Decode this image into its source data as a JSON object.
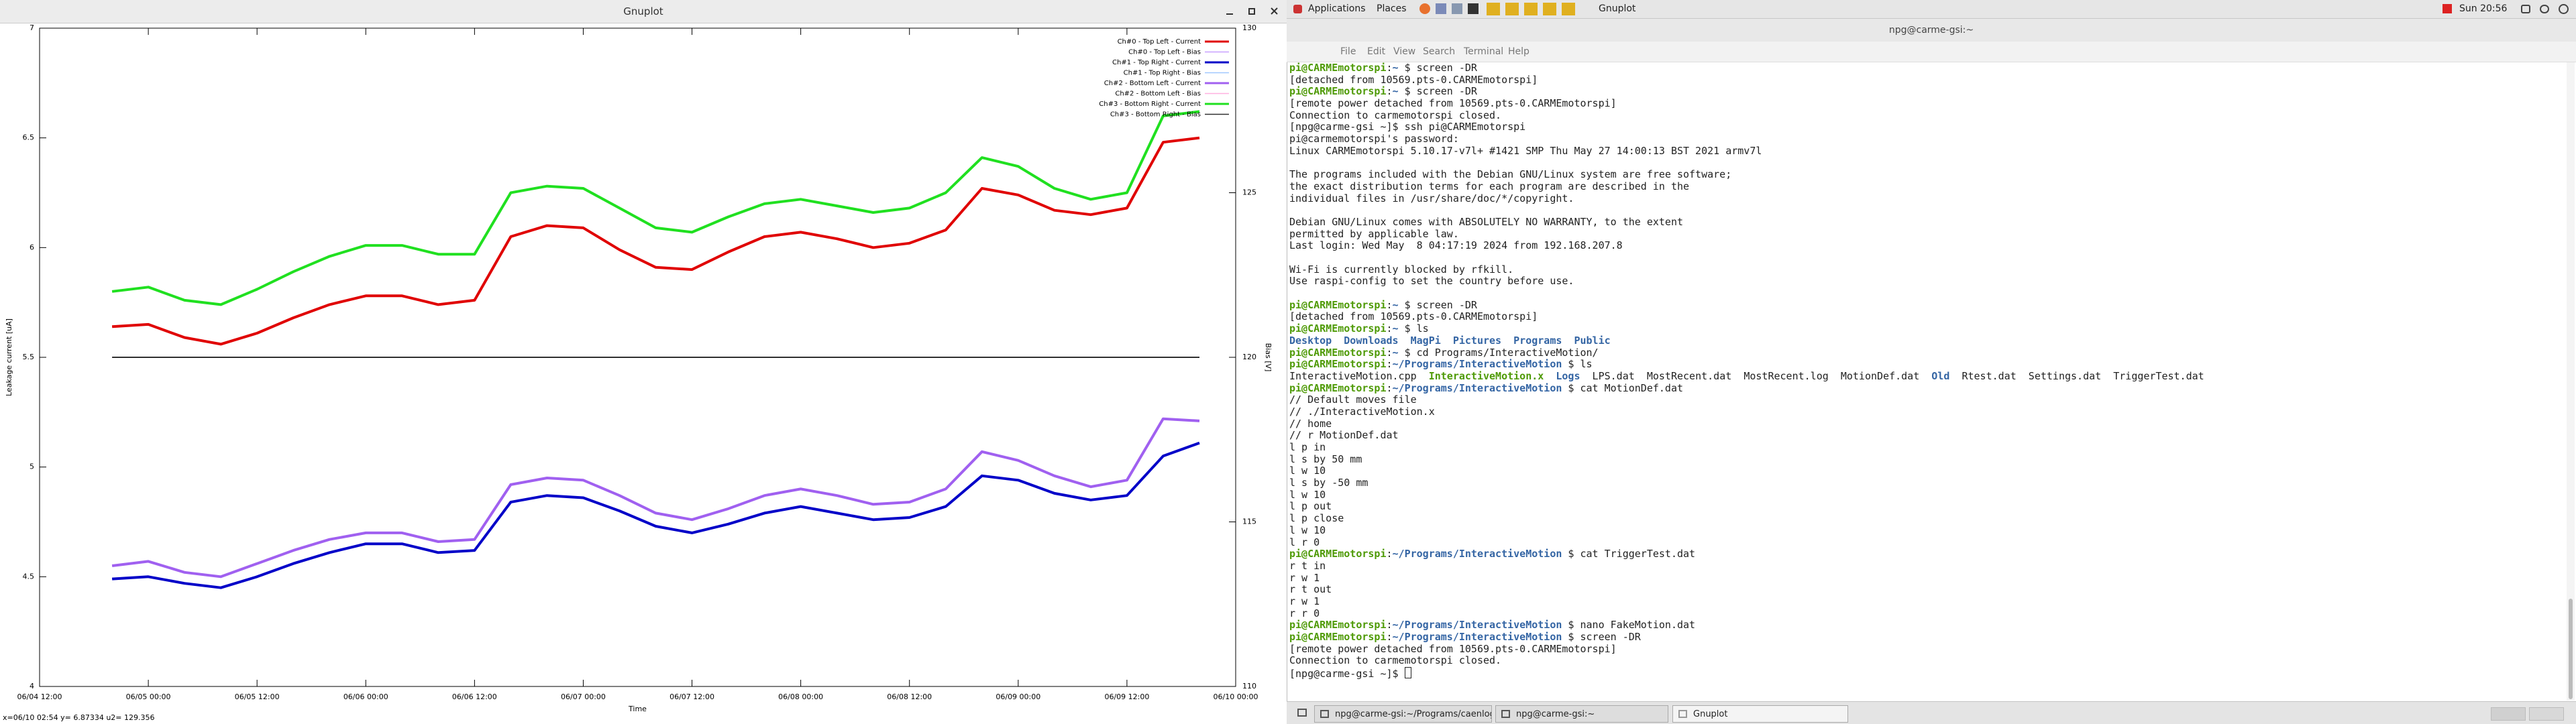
{
  "gnuplot_window": {
    "title": "Gnuplot",
    "status": "x=06/10 02:54 y= 6.87334 u2= 129.356"
  },
  "chart_data": {
    "type": "line",
    "xlabel": "Time",
    "ylabel": "Leakage current [uA]",
    "y2label": "Bias [V]",
    "x": [
      "06/04 20:00",
      "06/05 00:00",
      "06/05 04:00",
      "06/05 08:00",
      "06/05 12:00",
      "06/05 16:00",
      "06/05 20:00",
      "06/06 00:00",
      "06/06 04:00",
      "06/06 08:00",
      "06/06 12:00",
      "06/06 16:00",
      "06/06 20:00",
      "06/07 00:00",
      "06/07 04:00",
      "06/07 08:00",
      "06/07 12:00",
      "06/07 16:00",
      "06/07 20:00",
      "06/08 00:00",
      "06/08 04:00",
      "06/08 08:00",
      "06/08 12:00",
      "06/08 16:00",
      "06/08 20:00",
      "06/09 00:00",
      "06/09 04:00",
      "06/09 08:00",
      "06/09 12:00",
      "06/09 16:00",
      "06/09 20:00"
    ],
    "xlim": [
      "06/04 12:00",
      "06/10 00:00"
    ],
    "xticks": [
      "06/04 12:00",
      "06/05 00:00",
      "06/05 12:00",
      "06/06 00:00",
      "06/06 12:00",
      "06/07 00:00",
      "06/07 12:00",
      "06/08 00:00",
      "06/08 12:00",
      "06/09 00:00",
      "06/09 12:00",
      "06/10 00:00"
    ],
    "ylim": [
      4,
      7
    ],
    "yticks": [
      4,
      4.5,
      5,
      5.5,
      6,
      6.5,
      7
    ],
    "y2lim": [
      110,
      130
    ],
    "y2ticks": [
      110,
      115,
      120,
      125,
      130
    ],
    "legend": "top right",
    "series": [
      {
        "name": "Ch#0 - Top Left - Current",
        "color": "#e00000",
        "values": [
          5.64,
          5.65,
          5.59,
          5.56,
          5.61,
          5.68,
          5.74,
          5.78,
          5.78,
          5.74,
          5.76,
          6.05,
          6.1,
          6.09,
          5.99,
          5.91,
          5.9,
          5.98,
          6.05,
          6.07,
          6.04,
          6.0,
          6.02,
          6.08,
          6.27,
          6.24,
          6.17,
          6.15,
          6.18,
          6.48,
          6.5
        ]
      },
      {
        "name": "Ch#0 - Top Left - Bias",
        "color": "#c8a0ff",
        "axis": "y2",
        "x": [
          "06/04 20:00",
          "06/09 20:00"
        ],
        "values": [
          120,
          120
        ]
      },
      {
        "name": "Ch#1 - Top Right - Current",
        "color": "#0000c8",
        "values": [
          4.49,
          4.5,
          4.47,
          4.45,
          4.5,
          4.56,
          4.61,
          4.65,
          4.65,
          4.61,
          4.62,
          4.84,
          4.87,
          4.86,
          4.8,
          4.73,
          4.7,
          4.74,
          4.79,
          4.82,
          4.79,
          4.76,
          4.77,
          4.82,
          4.96,
          4.94,
          4.88,
          4.85,
          4.87,
          5.05,
          5.11
        ]
      },
      {
        "name": "Ch#1 - Top Right - Bias",
        "color": "#a0c8ff",
        "axis": "y2",
        "x": [
          "06/04 20:00",
          "06/09 20:00"
        ],
        "values": [
          120,
          120
        ]
      },
      {
        "name": "Ch#2 - Bottom Left - Current",
        "color": "#a060f0",
        "values": [
          4.55,
          4.57,
          4.52,
          4.5,
          4.56,
          4.62,
          4.67,
          4.7,
          4.7,
          4.66,
          4.67,
          4.92,
          4.95,
          4.94,
          4.87,
          4.79,
          4.76,
          4.81,
          4.87,
          4.9,
          4.87,
          4.83,
          4.84,
          4.9,
          5.07,
          5.03,
          4.96,
          4.91,
          4.94,
          5.22,
          5.21
        ]
      },
      {
        "name": "Ch#2 - Bottom Left - Bias",
        "color": "#ffb0e0",
        "axis": "y2",
        "x": [
          "06/04 20:00",
          "06/09 20:00"
        ],
        "values": [
          120,
          120
        ]
      },
      {
        "name": "Ch#3 - Bottom Right - Current",
        "color": "#20e020",
        "values": [
          5.8,
          5.82,
          5.76,
          5.74,
          5.81,
          5.89,
          5.96,
          6.01,
          6.01,
          5.97,
          5.97,
          6.25,
          6.28,
          6.27,
          6.18,
          6.09,
          6.07,
          6.14,
          6.2,
          6.22,
          6.19,
          6.16,
          6.18,
          6.25,
          6.41,
          6.37,
          6.27,
          6.22,
          6.25,
          6.6,
          6.62
        ]
      },
      {
        "name": "Ch#3 - Bottom Right - Bias",
        "color": "#303030",
        "axis": "y2",
        "x": [
          "06/04 20:00",
          "06/09 20:00"
        ],
        "values": [
          120,
          120
        ]
      }
    ]
  },
  "topbar": {
    "applications": "Applications",
    "places": "Places",
    "window": "Gnuplot",
    "clock": "Sun 20:56"
  },
  "terminal": {
    "title": "npg@carme-gsi:~",
    "menu": [
      "File",
      "Edit",
      "View",
      "Search",
      "Terminal",
      "Help"
    ],
    "lines": [
      [
        {
          "text": "pi@CARMEmotorspi",
          "color": "#4e9a06"
        },
        ":",
        {
          "text": "~",
          "color": "#3465a4"
        },
        " $ screen -DR"
      ],
      [
        "[detached from 10569.pts-0.CARMEmotorspi]"
      ],
      [
        {
          "text": "pi@CARMEmotorspi",
          "color": "#4e9a06"
        },
        ":",
        {
          "text": "~",
          "color": "#3465a4"
        },
        " $ screen -DR"
      ],
      [
        "[remote power detached from 10569.pts-0.CARMEmotorspi]"
      ],
      [
        "Connection to carmemotorspi closed."
      ],
      [
        "[npg@carme-gsi ~]$ ssh pi@CARMEmotorspi"
      ],
      [
        "pi@carmemotorspi's password:"
      ],
      [
        "Linux CARMEmotorspi 5.10.17-v7l+ #1421 SMP Thu May 27 14:00:13 BST 2021 armv7l"
      ],
      [],
      [
        "The programs included with the Debian GNU/Linux system are free software;"
      ],
      [
        "the exact distribution terms for each program are described in the"
      ],
      [
        "individual files in /usr/share/doc/*/copyright."
      ],
      [],
      [
        "Debian GNU/Linux comes with ABSOLUTELY NO WARRANTY, to the extent"
      ],
      [
        "permitted by applicable law."
      ],
      [
        "Last login: Wed May  8 04:17:19 2024 from 192.168.207.8"
      ],
      [],
      [
        "Wi-Fi is currently blocked by rfkill."
      ],
      [
        "Use raspi-config to set the country before use."
      ],
      [],
      [
        {
          "text": "pi@CARMEmotorspi",
          "color": "#4e9a06"
        },
        ":",
        {
          "text": "~",
          "color": "#3465a4"
        },
        " $ screen -DR"
      ],
      [
        "[detached from 10569.pts-0.CARMEmotorspi]"
      ],
      [
        {
          "text": "pi@CARMEmotorspi",
          "color": "#4e9a06"
        },
        ":",
        {
          "text": "~",
          "color": "#3465a4"
        },
        " $ ls"
      ],
      [
        {
          "text": "Desktop  Downloads  MagPi  Pictures  Programs  Public",
          "color": "#3465a4"
        }
      ],
      [
        {
          "text": "pi@CARMEmotorspi",
          "color": "#4e9a06"
        },
        ":",
        {
          "text": "~",
          "color": "#3465a4"
        },
        " $ cd Programs/InteractiveMotion/"
      ],
      [
        {
          "text": "pi@CARMEmotorspi",
          "color": "#4e9a06"
        },
        ":",
        {
          "text": "~/Programs/InteractiveMotion",
          "color": "#3465a4"
        },
        " $ ls"
      ],
      [
        "InteractiveMotion.cpp  ",
        {
          "text": "InteractiveMotion.x",
          "color": "#4e9a06"
        },
        "  ",
        {
          "text": "Logs",
          "color": "#3465a4"
        },
        "  LPS.dat  MostRecent.dat  MostRecent.log  MotionDef.dat  ",
        {
          "text": "Old",
          "color": "#3465a4"
        },
        "  Rtest.dat  Settings.dat  TriggerTest.dat"
      ],
      [
        {
          "text": "pi@CARMEmotorspi",
          "color": "#4e9a06"
        },
        ":",
        {
          "text": "~/Programs/InteractiveMotion",
          "color": "#3465a4"
        },
        " $ cat MotionDef.dat"
      ],
      [
        "// Default moves file"
      ],
      [
        "// ./InteractiveMotion.x"
      ],
      [
        "// home"
      ],
      [
        "// r MotionDef.dat"
      ],
      [
        "l p in"
      ],
      [
        "l s by 50 mm"
      ],
      [
        "l w 10"
      ],
      [
        "l s by -50 mm"
      ],
      [
        "l w 10"
      ],
      [
        "l p out"
      ],
      [
        "l p close"
      ],
      [
        "l w 10"
      ],
      [
        "l r 0"
      ],
      [
        {
          "text": "pi@CARMEmotorspi",
          "color": "#4e9a06"
        },
        ":",
        {
          "text": "~/Programs/InteractiveMotion",
          "color": "#3465a4"
        },
        " $ cat TriggerTest.dat"
      ],
      [
        "r t in"
      ],
      [
        "r w 1"
      ],
      [
        "r t out"
      ],
      [
        "r w 1"
      ],
      [
        "r r 0"
      ],
      [
        {
          "text": "pi@CARMEmotorspi",
          "color": "#4e9a06"
        },
        ":",
        {
          "text": "~/Programs/InteractiveMotion",
          "color": "#3465a4"
        },
        " $ nano FakeMotion.dat"
      ],
      [
        {
          "text": "pi@CARMEmotorspi",
          "color": "#4e9a06"
        },
        ":",
        {
          "text": "~/Programs/InteractiveMotion",
          "color": "#3465a4"
        },
        " $ screen -DR"
      ],
      [
        "[remote power detached from 10569.pts-0.CARMEmotorspi]"
      ],
      [
        "Connection to carmemotorspi closed."
      ],
      [
        "[npg@carme-gsi ~]$ "
      ]
    ]
  },
  "taskbar": [
    "npg@carme-gsi:~/Programs/caenlog...",
    "npg@carme-gsi:~",
    "Gnuplot"
  ]
}
